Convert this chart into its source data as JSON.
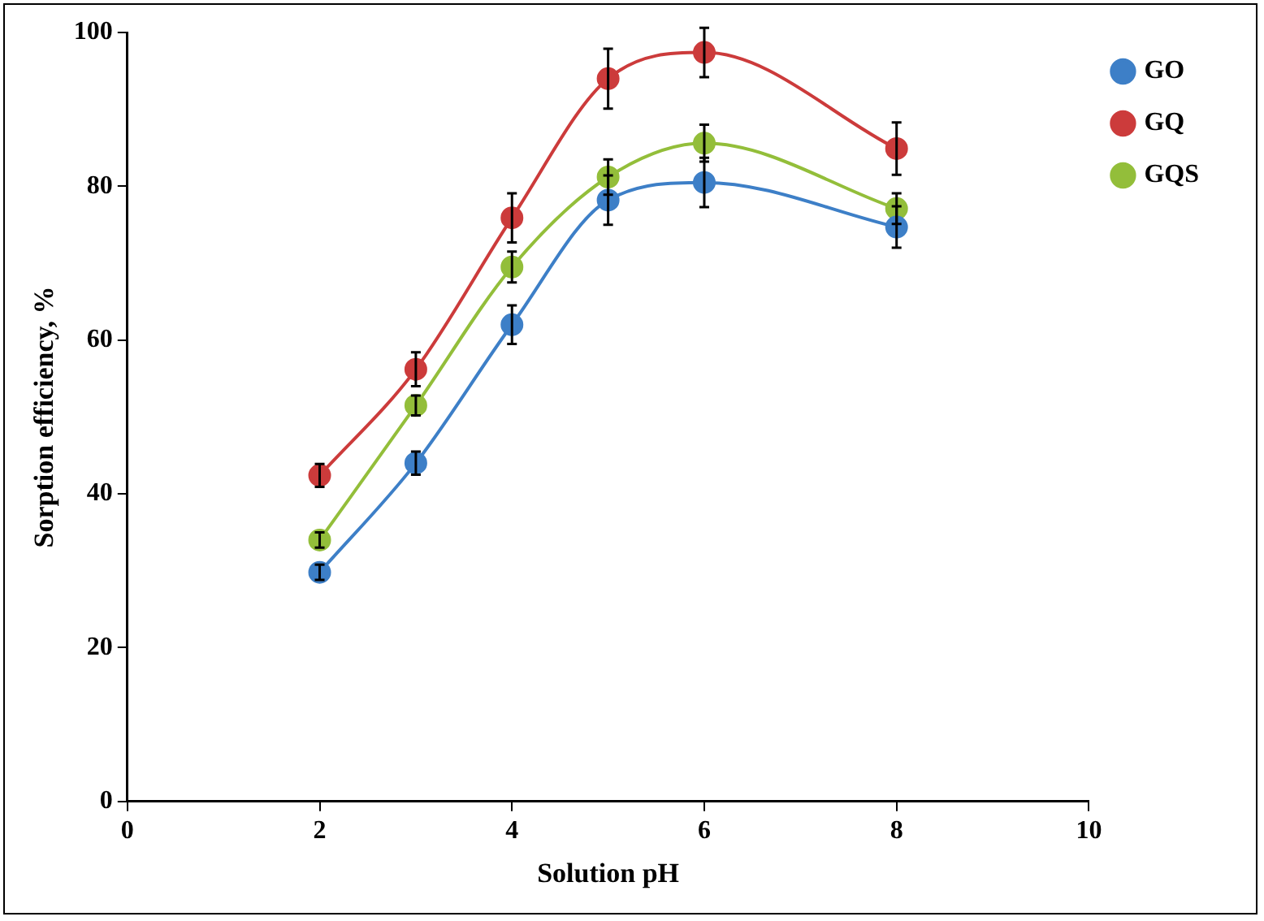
{
  "chart_data": {
    "type": "line",
    "xlabel": "Solution pH",
    "ylabel": "Sorption efficiency, %",
    "x": [
      2,
      3,
      4,
      5,
      6,
      8
    ],
    "series": [
      {
        "name": "GO",
        "color": "#3d7fc7",
        "values": [
          29.8,
          44,
          62,
          78.2,
          80.5,
          74.7
        ],
        "errors": [
          1,
          1.5,
          2.5,
          3.2,
          3.2,
          2.7
        ]
      },
      {
        "name": "GQ",
        "color": "#cc3b3b",
        "values": [
          42.4,
          56.2,
          75.9,
          94,
          97.4,
          84.9
        ],
        "errors": [
          1.5,
          2.2,
          3.2,
          3.9,
          3.2,
          3.4
        ]
      },
      {
        "name": "GQS",
        "color": "#93be3a",
        "values": [
          34,
          51.5,
          69.5,
          81.2,
          85.6,
          77.1
        ],
        "errors": [
          1,
          1.3,
          2,
          2.3,
          2.4,
          2
        ]
      }
    ],
    "xlim": [
      0,
      10
    ],
    "xticks": [
      0,
      2,
      4,
      6,
      8,
      10
    ],
    "ylim": [
      0,
      100
    ],
    "yticks": [
      0,
      20,
      40,
      60,
      80,
      100
    ],
    "grid": false,
    "legend": "top right",
    "marker": "circle",
    "line_style": "solid"
  }
}
